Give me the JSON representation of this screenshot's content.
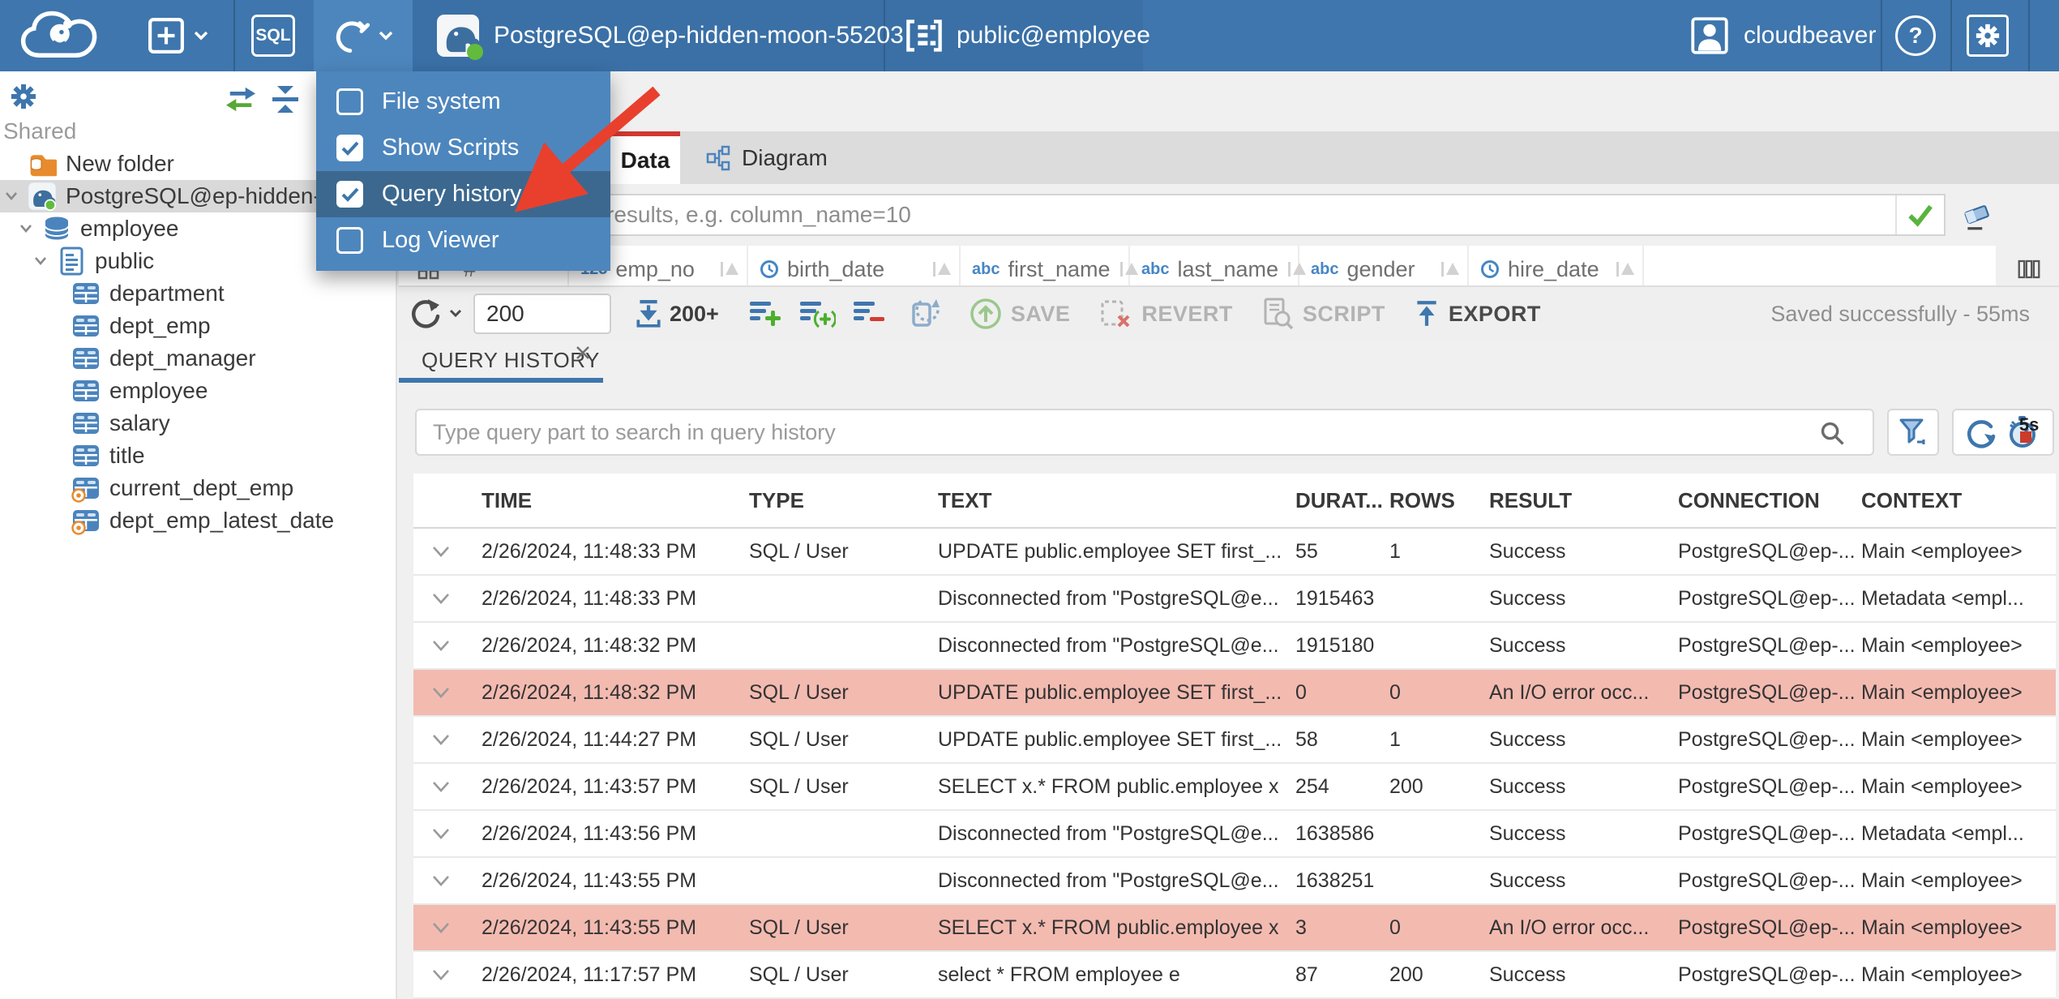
{
  "colors": {
    "topbar_blue": "#3e76ad",
    "menu_blue": "#4d86bd",
    "menu_highlight": "#3c688f",
    "active_tab_red": "#d13732",
    "error_row_pink": "#f3bab0",
    "success_green": "#58b43c",
    "status_dot_green": "#63bb3c",
    "icon_blue": "#4b84bd"
  },
  "topbar": {
    "sql_label": "SQL",
    "connection_label": "PostgreSQL@ep-hidden-moon-55203",
    "schema_label": "public@employee",
    "username": "cloudbeaver",
    "help_glyph": "?"
  },
  "tools_menu": {
    "items": [
      {
        "label": "File system",
        "checked": false,
        "highlighted": false
      },
      {
        "label": "Show Scripts",
        "checked": true,
        "highlighted": false
      },
      {
        "label": "Query history",
        "checked": true,
        "highlighted": true
      },
      {
        "label": "Log Viewer",
        "checked": false,
        "highlighted": false
      }
    ]
  },
  "sidebar": {
    "section_label": "Shared",
    "tree": [
      {
        "label": "New folder",
        "icon": "folder",
        "level": 0,
        "chevron": false,
        "selected": false
      },
      {
        "label": "PostgreSQL@ep-hidden-moon-55203",
        "icon": "postgres",
        "level": 0,
        "chevron": true,
        "selected": true
      },
      {
        "label": "employee",
        "icon": "database",
        "level": 1,
        "chevron": true,
        "selected": false
      },
      {
        "label": "public",
        "icon": "schema",
        "level": 2,
        "chevron": true,
        "selected": false
      },
      {
        "label": "department",
        "icon": "table",
        "level": 3,
        "chevron": false,
        "selected": false
      },
      {
        "label": "dept_emp",
        "icon": "table",
        "level": 3,
        "chevron": false,
        "selected": false
      },
      {
        "label": "dept_manager",
        "icon": "table",
        "level": 3,
        "chevron": false,
        "selected": false
      },
      {
        "label": "employee",
        "icon": "table",
        "level": 3,
        "chevron": false,
        "selected": false
      },
      {
        "label": "salary",
        "icon": "table",
        "level": 3,
        "chevron": false,
        "selected": false
      },
      {
        "label": "title",
        "icon": "table",
        "level": 3,
        "chevron": false,
        "selected": false
      },
      {
        "label": "current_dept_emp",
        "icon": "view",
        "level": 3,
        "chevron": false,
        "selected": false
      },
      {
        "label": "dept_emp_latest_date",
        "icon": "view",
        "level": 3,
        "chevron": false,
        "selected": false
      }
    ]
  },
  "editor": {
    "tabs": [
      {
        "label": "Data",
        "active": true
      },
      {
        "label": "Diagram",
        "active": false
      }
    ],
    "filter_placeholder": "expression to filter results, e.g. column_name=10",
    "grid": {
      "corner_hash": "#",
      "columns": [
        {
          "name": "emp_no",
          "type": "number",
          "badge": "123"
        },
        {
          "name": "birth_date",
          "type": "datetime",
          "badge": ""
        },
        {
          "name": "first_name",
          "type": "text",
          "badge": "abc"
        },
        {
          "name": "last_name",
          "type": "text",
          "badge": "abc"
        },
        {
          "name": "gender",
          "type": "text",
          "badge": "abc"
        },
        {
          "name": "hire_date",
          "type": "datetime",
          "badge": ""
        }
      ]
    },
    "toolbar": {
      "row_limit": "200",
      "fetch_more": "200+",
      "save_label": "SAVE",
      "revert_label": "REVERT",
      "script_label": "SCRIPT",
      "export_label": "EXPORT",
      "status": "Saved successfully - 55ms"
    }
  },
  "query_history": {
    "tab_label": "QUERY HISTORY",
    "search_placeholder": "Type query part to search in query history",
    "auto_refresh_interval": "5s",
    "columns": [
      "TIME",
      "TYPE",
      "TEXT",
      "DURAT...",
      "ROWS",
      "RESULT",
      "CONNECTION",
      "CONTEXT"
    ],
    "rows": [
      {
        "time": "2/26/2024, 11:48:33 PM",
        "type": "SQL / User",
        "text": "UPDATE public.employee SET first_...",
        "duration": "55",
        "rows": "1",
        "result": "Success",
        "connection": "PostgreSQL@ep-...",
        "context": "Main <employee>",
        "error": false
      },
      {
        "time": "2/26/2024, 11:48:33 PM",
        "type": "",
        "text": "Disconnected from \"PostgreSQL@e...",
        "duration": "1915463",
        "rows": "",
        "result": "Success",
        "connection": "PostgreSQL@ep-...",
        "context": "Metadata <empl...",
        "error": false
      },
      {
        "time": "2/26/2024, 11:48:32 PM",
        "type": "",
        "text": "Disconnected from \"PostgreSQL@e...",
        "duration": "1915180",
        "rows": "",
        "result": "Success",
        "connection": "PostgreSQL@ep-...",
        "context": "Main <employee>",
        "error": false
      },
      {
        "time": "2/26/2024, 11:48:32 PM",
        "type": "SQL / User",
        "text": "UPDATE public.employee SET first_...",
        "duration": "0",
        "rows": "0",
        "result": "An I/O error occ...",
        "connection": "PostgreSQL@ep-...",
        "context": "Main <employee>",
        "error": true
      },
      {
        "time": "2/26/2024, 11:44:27 PM",
        "type": "SQL / User",
        "text": "UPDATE public.employee SET first_...",
        "duration": "58",
        "rows": "1",
        "result": "Success",
        "connection": "PostgreSQL@ep-...",
        "context": "Main <employee>",
        "error": false
      },
      {
        "time": "2/26/2024, 11:43:57 PM",
        "type": "SQL / User",
        "text": "SELECT x.* FROM public.employee x",
        "duration": "254",
        "rows": "200",
        "result": "Success",
        "connection": "PostgreSQL@ep-...",
        "context": "Main <employee>",
        "error": false
      },
      {
        "time": "2/26/2024, 11:43:56 PM",
        "type": "",
        "text": "Disconnected from \"PostgreSQL@e...",
        "duration": "1638586",
        "rows": "",
        "result": "Success",
        "connection": "PostgreSQL@ep-...",
        "context": "Metadata <empl...",
        "error": false
      },
      {
        "time": "2/26/2024, 11:43:55 PM",
        "type": "",
        "text": "Disconnected from \"PostgreSQL@e...",
        "duration": "1638251",
        "rows": "",
        "result": "Success",
        "connection": "PostgreSQL@ep-...",
        "context": "Main <employee>",
        "error": false
      },
      {
        "time": "2/26/2024, 11:43:55 PM",
        "type": "SQL / User",
        "text": "SELECT x.* FROM public.employee x",
        "duration": "3",
        "rows": "0",
        "result": "An I/O error occ...",
        "connection": "PostgreSQL@ep-...",
        "context": "Main <employee>",
        "error": true
      },
      {
        "time": "2/26/2024, 11:17:57 PM",
        "type": "SQL / User",
        "text": "select * FROM employee e",
        "duration": "87",
        "rows": "200",
        "result": "Success",
        "connection": "PostgreSQL@ep-...",
        "context": "Main <employee>",
        "error": false
      }
    ]
  }
}
